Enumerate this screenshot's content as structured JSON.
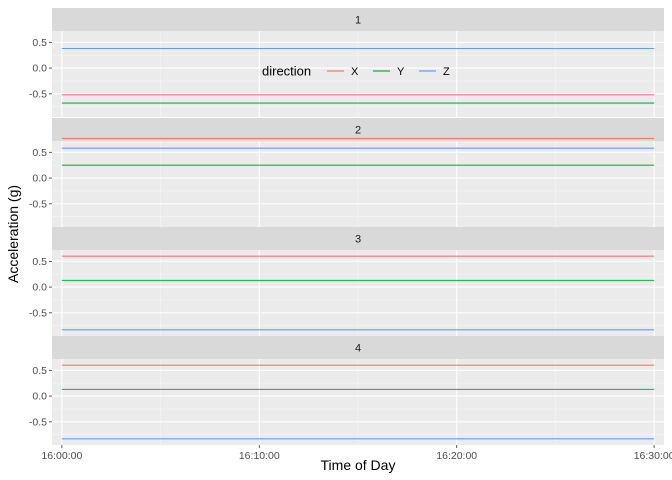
{
  "chart_data": {
    "type": "line",
    "xlabel": "Time of Day",
    "ylabel": "Acceleration (g)",
    "x_ticks": [
      "16:00:00",
      "16:10:00",
      "16:20:00",
      "16:30:00"
    ],
    "x_range": [
      "15:59:30",
      "16:30:30"
    ],
    "x_data_range": [
      "16:00:00",
      "16:30:00"
    ],
    "y_ticks": [
      -0.5,
      0.0,
      0.5
    ],
    "y_tick_labels": [
      "-0.5",
      "0.0",
      "0.5"
    ],
    "ylim": [
      -0.95,
      0.72
    ],
    "grid": true,
    "legend": {
      "title": "direction",
      "placement": "inside first panel, center",
      "entries": [
        "X",
        "Y",
        "Z"
      ]
    },
    "colors": {
      "X": "#F8766D",
      "Y": "#00BA38",
      "Z": "#619CFF"
    },
    "panels": [
      {
        "label": "1",
        "series": [
          {
            "name": "X",
            "value": -0.52
          },
          {
            "name": "Y",
            "value": -0.68
          },
          {
            "name": "Z",
            "value": 0.38
          }
        ]
      },
      {
        "label": "2",
        "series": [
          {
            "name": "X",
            "value": 0.77
          },
          {
            "name": "Y",
            "value": 0.25
          },
          {
            "name": "Z",
            "value": 0.58
          }
        ]
      },
      {
        "label": "3",
        "series": [
          {
            "name": "X",
            "value": 0.6
          },
          {
            "name": "Y",
            "value": 0.13
          },
          {
            "name": "Z",
            "value": -0.83
          }
        ]
      },
      {
        "label": "4",
        "series": [
          {
            "name": "X",
            "value": 0.6
          },
          {
            "name": "Y",
            "value": 0.13
          },
          {
            "name": "Z",
            "value": -0.83
          }
        ]
      }
    ]
  }
}
